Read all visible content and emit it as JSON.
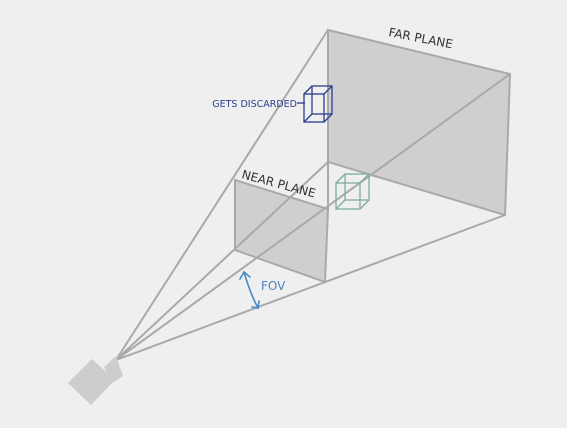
{
  "labels": {
    "far_plane": "FAR PLANE",
    "near_plane": "NEAR PLANE",
    "gets_discarded": "GETS DISCARDED",
    "fov": "FOV"
  },
  "colors": {
    "background": "#efefef",
    "frustum_line": "#a9a9a9",
    "plane_fill": "#cfcfcf",
    "camera": "#cdcdcd",
    "discarded_cube": "#2b3f8f",
    "inside_cube": "#7fae97",
    "fov": "#4a87c4",
    "text_dark": "#333333"
  }
}
